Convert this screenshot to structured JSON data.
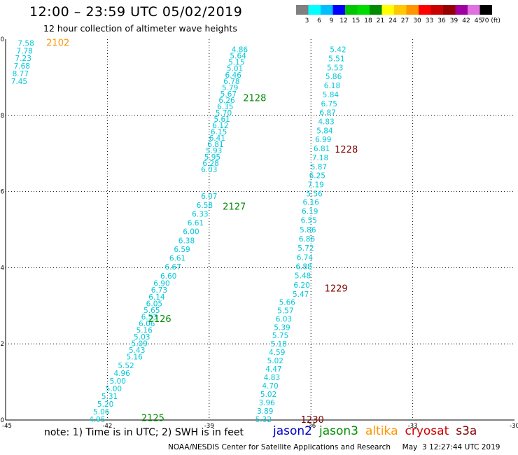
{
  "header": {
    "title": "12:00 – 23:59 UTC 05/02/2019",
    "subtitle": "12 hour collection of altimeter wave heights"
  },
  "colorbar": {
    "labels": [
      "3",
      "6",
      "9",
      "12",
      "15",
      "18",
      "21",
      "24",
      "27",
      "30",
      "33",
      "36",
      "39",
      "42",
      "45",
      "70 (ft)"
    ],
    "colors": [
      "#808080",
      "#00ffff",
      "#00bfff",
      "#0000ff",
      "#00c800",
      "#00dc00",
      "#008c00",
      "#ffff00",
      "#ffc800",
      "#ff9600",
      "#ff0000",
      "#c80000",
      "#960000",
      "#a000a0",
      "#e070e0",
      "#000000"
    ]
  },
  "footer": {
    "note": "note: 1) Time is in UTC; 2) SWH is in feet",
    "legend": [
      {
        "label": "jason2",
        "color": "#0000cc"
      },
      {
        "label": "jason3",
        "color": "#008c00"
      },
      {
        "label": "altika",
        "color": "#ff9600"
      },
      {
        "label": "cryosat",
        "color": "#cc0000"
      },
      {
        "label": "s3a",
        "color": "#800000"
      }
    ],
    "credit": "NOAA/NESDIS Center for Satellite Applications and Research     May  3 12:27:44 UTC 2019"
  },
  "chart_data": {
    "type": "scatter",
    "xlim": [
      -45,
      -30
    ],
    "ylim": [
      0,
      10
    ],
    "x_ticks": [
      "-45",
      "-42",
      "-39",
      "-36",
      "-33",
      "-30"
    ],
    "y_ticks": [
      "0",
      "2",
      "4",
      "6",
      "8",
      "10"
    ],
    "grid": true,
    "value_color": "#00c8d8",
    "series": [
      {
        "pass": "2102",
        "pass_color": "#ff9600",
        "pass_label": {
          "x": -43.8,
          "y": 9.9
        },
        "start": {
          "x": -44.4,
          "y": 9.9
        },
        "end": {
          "x": -44.6,
          "y": 8.9
        },
        "values": [
          "7.58",
          "7.78",
          "7.23",
          "7.68",
          "8.77",
          "7.45"
        ]
      },
      {
        "pass": "2128",
        "pass_color": "#008c00",
        "pass_label": {
          "x": -38.0,
          "y": 8.45
        },
        "start": {
          "x": -38.1,
          "y": 9.73
        },
        "end": {
          "x": -39.0,
          "y": 6.58
        },
        "values": [
          "4.86",
          "5.64",
          "5.15",
          "5.01",
          "6.46",
          "6.78",
          "5.79",
          "5.67",
          "6.26",
          "6.35",
          "5.70",
          "5.61",
          "6.12",
          "6.15",
          "6.41",
          "6.81",
          "5.93",
          "5.95",
          "6.28",
          "6.03"
        ]
      },
      {
        "pass": "2127",
        "pass_color": "#008c00",
        "pass_label": {
          "x": -38.6,
          "y": 5.6
        },
        "start": {
          "x": -39.0,
          "y": 5.88
        },
        "end": {
          "x": -40.2,
          "y": 3.79
        },
        "values": [
          "6.07",
          "6.58",
          "6.33",
          "6.61",
          "6.00",
          "6.38",
          "6.59",
          "6.61",
          "6.67",
          "6.60"
        ]
      },
      {
        "pass": "2126",
        "pass_color": "#008c00",
        "pass_label": {
          "x": -40.8,
          "y": 2.65
        },
        "start": {
          "x": -40.4,
          "y": 3.59
        },
        "end": {
          "x": -41.2,
          "y": 1.66
        },
        "values": [
          "6.90",
          "6.73",
          "6.14",
          "6.05",
          "5.65",
          "6.53",
          "6.06",
          "5.16",
          "5.03",
          "5.09",
          "5.43",
          "5.16"
        ]
      },
      {
        "pass": "2125",
        "pass_color": "#008c00",
        "pass_label": {
          "x": -41.0,
          "y": 0.05
        },
        "start": {
          "x": -41.45,
          "y": 1.43
        },
        "end": {
          "x": -42.3,
          "y": 0.02
        },
        "values": [
          "5.52",
          "4.96",
          "5.00",
          "5.00",
          "5.31",
          "5.20",
          "5.06",
          "4.95"
        ]
      },
      {
        "pass": "1228",
        "pass_color": "#800000",
        "pass_label": {
          "x": -35.3,
          "y": 7.1
        },
        "start": {
          "x": -35.2,
          "y": 9.73
        },
        "end": {
          "x": -35.9,
          "y": 5.95
        },
        "values": [
          "5.42",
          "5.51",
          "5.53",
          "5.86",
          "6.18",
          "5.84",
          "6.75",
          "6.87",
          "4.83",
          "5.84",
          "6.99",
          "6.81",
          "7.18",
          "5.87",
          "6.25",
          "7.19",
          "5.56"
        ]
      },
      {
        "pass": "1229",
        "pass_color": "#800000",
        "pass_label": {
          "x": -35.6,
          "y": 3.45
        },
        "start": {
          "x": -36.0,
          "y": 5.73
        },
        "end": {
          "x": -36.3,
          "y": 3.31
        },
        "values": [
          "6.16",
          "6.19",
          "6.55",
          "5.86",
          "6.86",
          "5.72",
          "6.74",
          "6.88",
          "5.48",
          "6.20",
          "5.47"
        ]
      },
      {
        "pass": "1230",
        "pass_color": "#800000",
        "pass_label": {
          "x": -36.3,
          "y": 0.0
        },
        "start": {
          "x": -36.7,
          "y": 3.1
        },
        "end": {
          "x": -37.4,
          "y": 0.02
        },
        "values": [
          "5.66",
          "5.57",
          "6.03",
          "5.39",
          "5.75",
          "5.18",
          "4.59",
          "5.02",
          "4.47",
          "4.83",
          "4.70",
          "5.02",
          "3.96",
          "3.89",
          "5.32"
        ]
      }
    ]
  }
}
